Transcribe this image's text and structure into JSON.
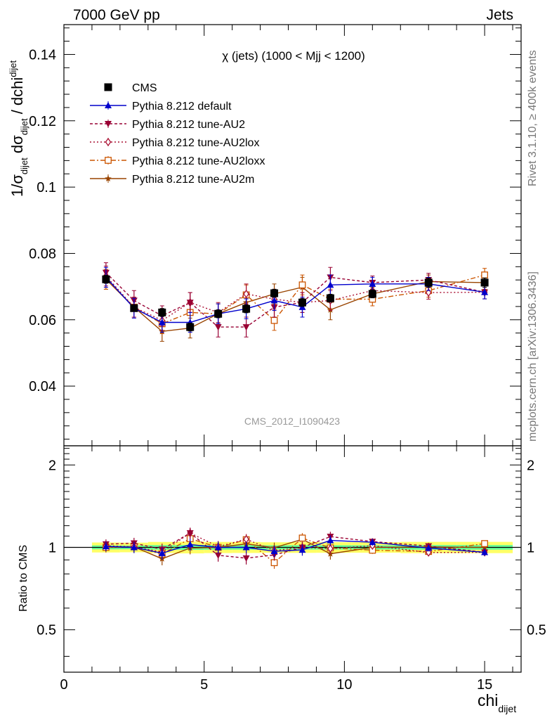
{
  "header": {
    "energy_label": "7000 GeV pp",
    "process_label": "Jets",
    "plot_title": "χ (jets) (1000 < Mjj < 1200)",
    "watermark": "CMS_2012_I1090423",
    "side_top": "Rivet 3.1.10, ≥ 400k events",
    "side_bottom": "mcplots.cern.ch [arXiv:1306.3436]"
  },
  "axes": {
    "y_main_label": {
      "prefix": "1/σ",
      "sub1": "dijet",
      "mid": " dσ",
      "sub2": "dijet",
      "tail": " / dchi",
      "sub3": "dijet"
    },
    "x_label": {
      "main": "chi",
      "sub": "dijet"
    },
    "ratio_ylabel": "Ratio to CMS",
    "x_ticks": [
      "0",
      "5",
      "10",
      "15"
    ],
    "y_main_ticks": [
      "0.04",
      "0.06",
      "0.08",
      "0.1",
      "0.12",
      "0.14"
    ],
    "y_ratio_ticks": [
      "0.5",
      "1",
      "2",
      "0.5",
      "1",
      "2"
    ]
  },
  "colors": {
    "data": "#000000",
    "default": "#0000cc",
    "au2": "#990033",
    "au2lox": "#aa1133",
    "au2loxx": "#cc5500",
    "au2m": "#994400",
    "band_inner": "#66ff99",
    "band_outer": "#ffff66"
  },
  "chart_data": {
    "type": "line",
    "x": [
      1.5,
      2.5,
      3.5,
      4.5,
      5.5,
      6.5,
      7.5,
      8.5,
      9.5,
      11.0,
      13.0,
      15.0
    ],
    "xlim": [
      0,
      16.3
    ],
    "ylim": [
      0.022,
      0.149
    ],
    "ratio_ylim": [
      0.35,
      2.35
    ],
    "ratio_yscale": "log",
    "legend_position": "top-left",
    "series": [
      {
        "name": "CMS",
        "key": "data",
        "marker": "square",
        "dash": "",
        "values": [
          0.0722,
          0.0635,
          0.0622,
          0.0578,
          0.0618,
          0.0633,
          0.068,
          0.0652,
          0.0665,
          0.0678,
          0.0712,
          0.0712
        ],
        "err": [
          0.0012,
          0.001,
          0.0012,
          0.0012,
          0.0012,
          0.0012,
          0.0012,
          0.0012,
          0.0012,
          0.0012,
          0.0014,
          0.0014
        ]
      },
      {
        "name": "Pythia 8.212 default",
        "key": "default",
        "marker": "triangle-up",
        "dash": "",
        "values": [
          0.0728,
          0.0635,
          0.0592,
          0.0592,
          0.0618,
          0.0633,
          0.0658,
          0.0638,
          0.0705,
          0.0708,
          0.0708,
          0.0683
        ],
        "err": [
          0.003,
          0.003,
          0.003,
          0.003,
          0.003,
          0.003,
          0.003,
          0.003,
          0.003,
          0.002,
          0.002,
          0.002
        ]
      },
      {
        "name": "Pythia 8.212 tune-AU2",
        "key": "au2",
        "marker": "triangle-down",
        "dash": "4,3",
        "values": [
          0.0742,
          0.0658,
          0.0612,
          0.0652,
          0.0578,
          0.0578,
          0.0638,
          0.0652,
          0.0728,
          0.0712,
          0.072,
          0.0683
        ],
        "err": [
          0.003,
          0.003,
          0.003,
          0.003,
          0.003,
          0.003,
          0.003,
          0.003,
          0.003,
          0.002,
          0.002,
          0.002
        ]
      },
      {
        "name": "Pythia 8.212 tune-AU2lox",
        "key": "au2lox",
        "marker": "diamond-open",
        "dash": "2,3",
        "values": [
          0.0732,
          0.0638,
          0.0598,
          0.0652,
          0.0622,
          0.0678,
          0.0662,
          0.0652,
          0.0658,
          0.0688,
          0.0682,
          0.0683
        ],
        "err": [
          0.003,
          0.003,
          0.003,
          0.003,
          0.003,
          0.003,
          0.003,
          0.003,
          0.003,
          0.002,
          0.002,
          0.002
        ]
      },
      {
        "name": "Pythia 8.212 tune-AU2loxx",
        "key": "au2loxx",
        "marker": "square-open",
        "dash": "7,3,2,3",
        "values": [
          0.0722,
          0.0638,
          0.0588,
          0.0622,
          0.0618,
          0.0675,
          0.0598,
          0.0705,
          0.0662,
          0.0662,
          0.0688,
          0.0735
        ],
        "err": [
          0.003,
          0.003,
          0.003,
          0.003,
          0.003,
          0.003,
          0.003,
          0.003,
          0.003,
          0.002,
          0.002,
          0.002
        ]
      },
      {
        "name": "Pythia 8.212 tune-AU2m",
        "key": "au2m",
        "marker": "star",
        "dash": "",
        "values": [
          0.0722,
          0.0638,
          0.0565,
          0.0575,
          0.0618,
          0.0652,
          0.0678,
          0.0698,
          0.063,
          0.0678,
          0.0715,
          0.0712
        ],
        "err": [
          0.003,
          0.003,
          0.003,
          0.003,
          0.003,
          0.003,
          0.003,
          0.003,
          0.003,
          0.002,
          0.002,
          0.002
        ]
      }
    ]
  }
}
